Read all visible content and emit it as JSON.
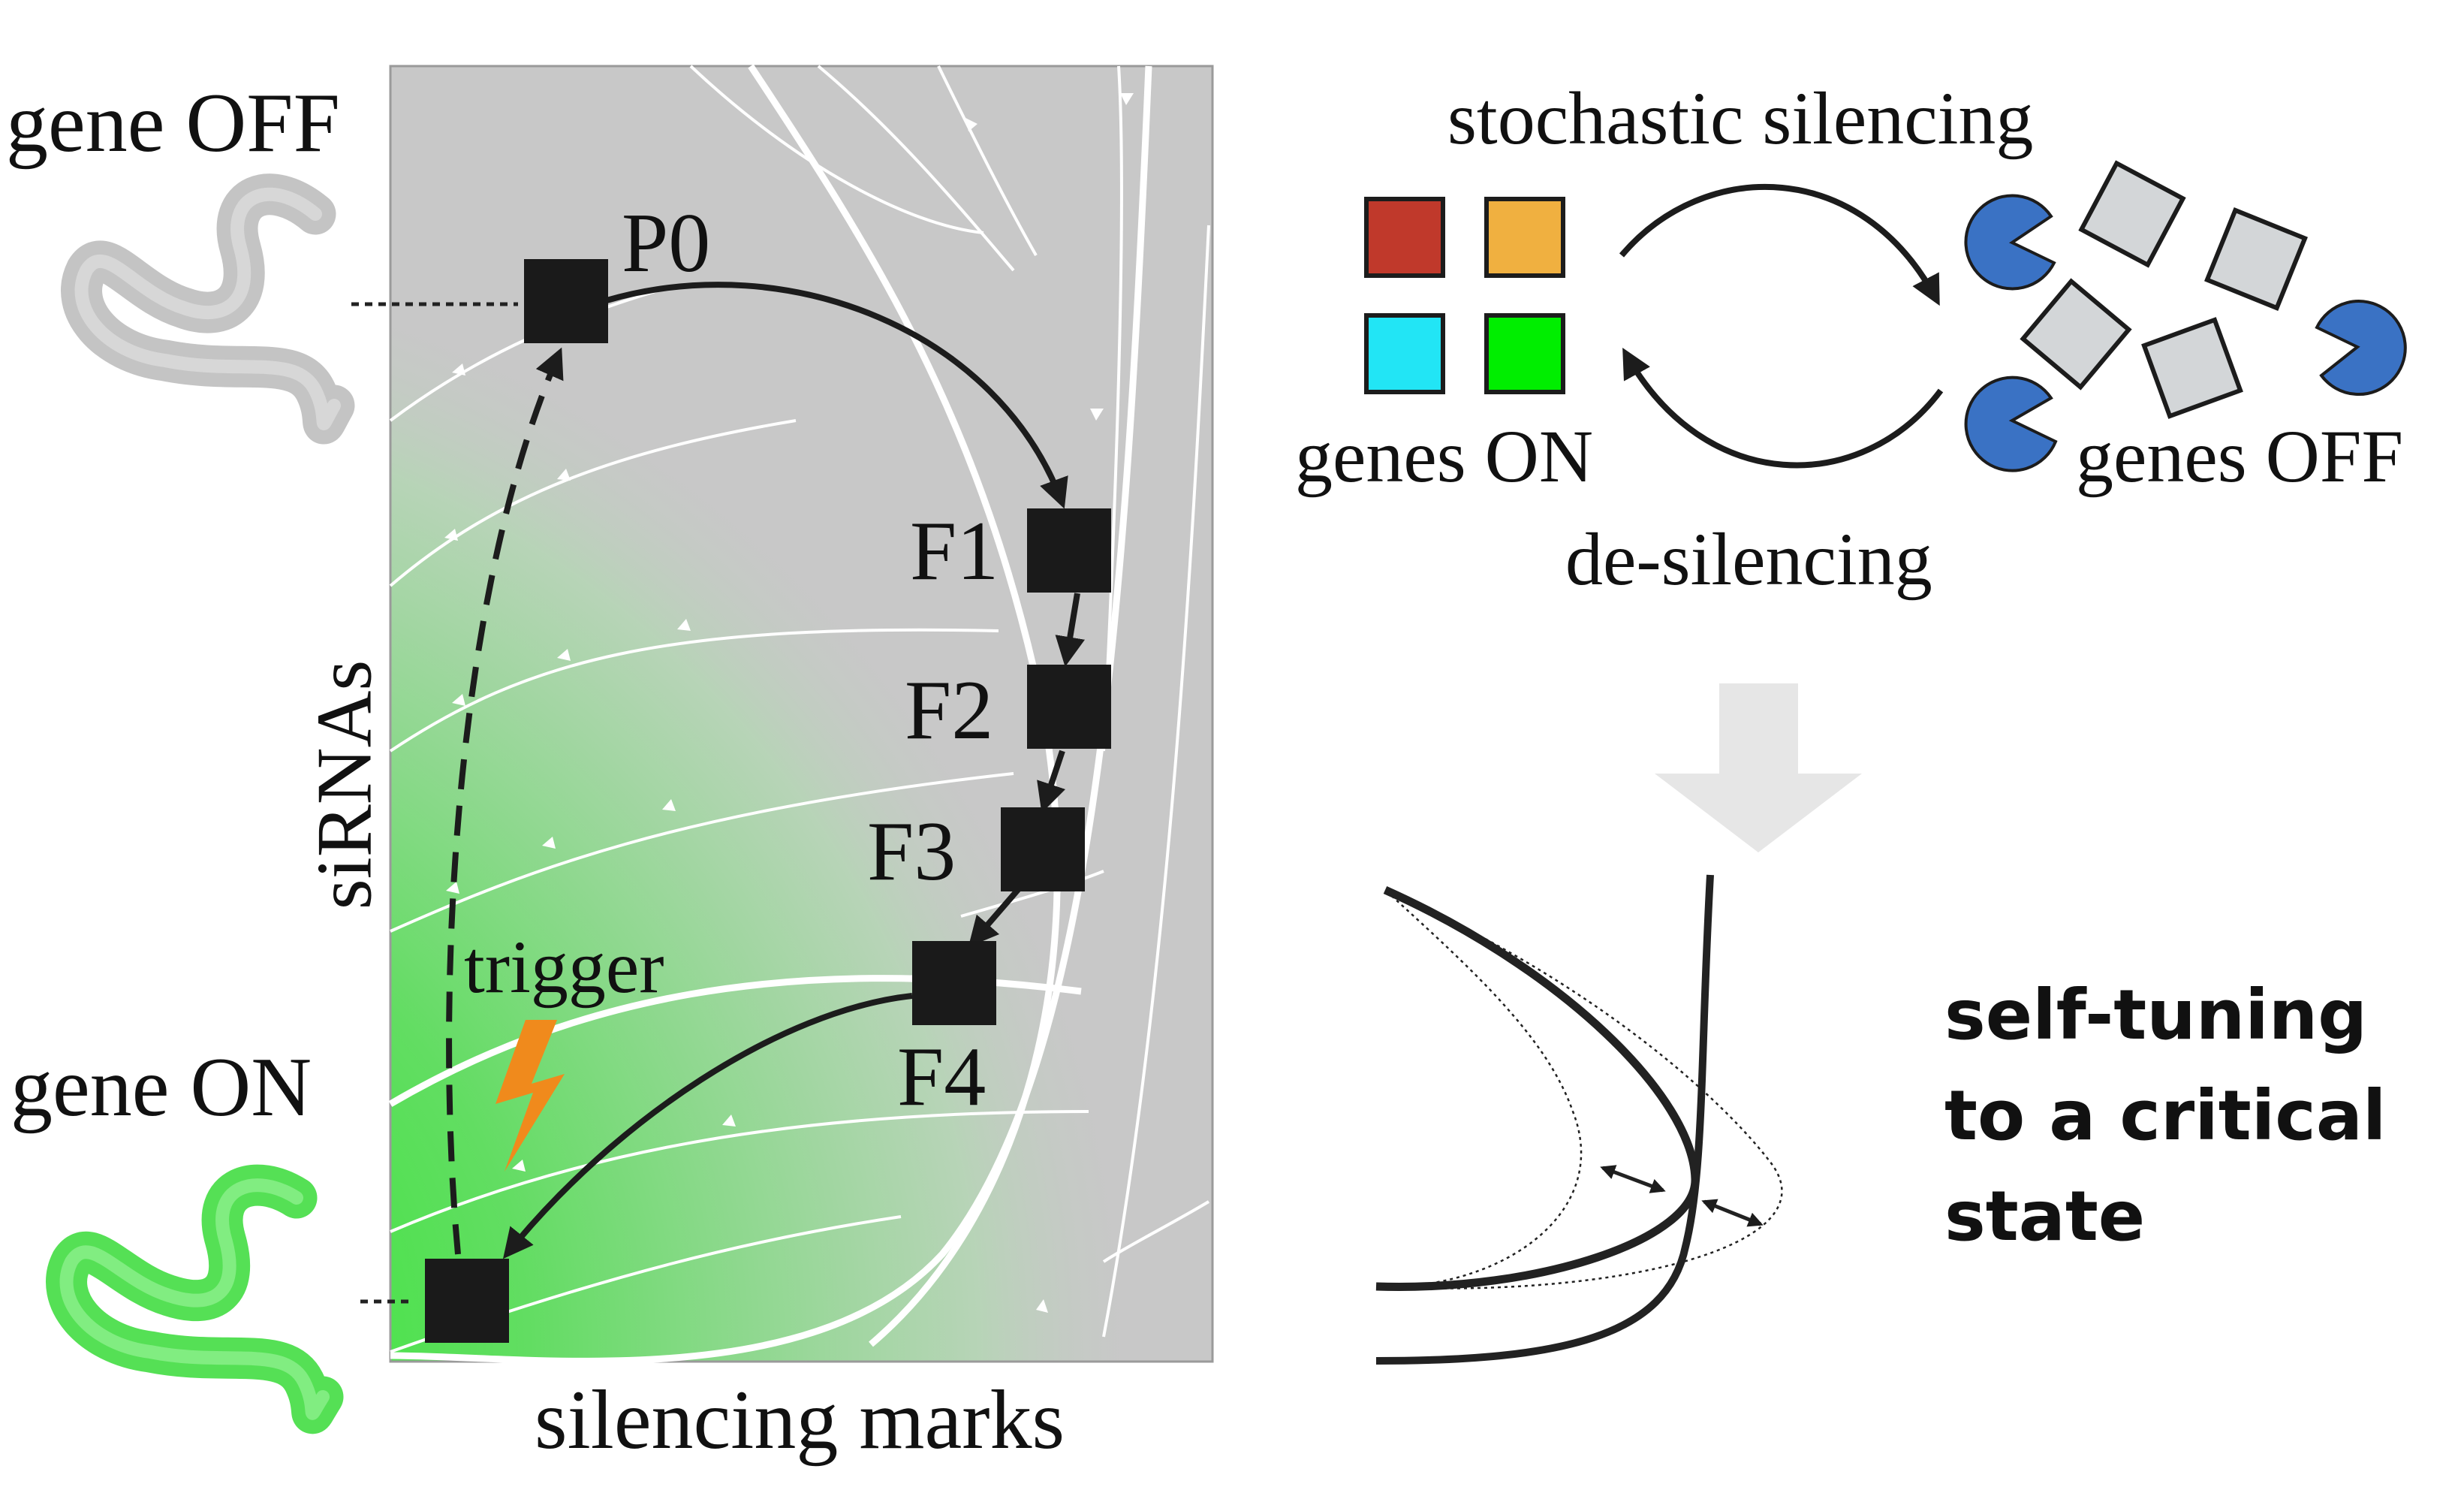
{
  "left_panel": {
    "x_axis_label": "silencing marks",
    "y_axis_label": "siRNAs",
    "gene_off_label": "gene OFF",
    "gene_on_label": "gene ON",
    "trigger_label": "trigger",
    "generations": [
      "P0",
      "F1",
      "F2",
      "F3",
      "F4"
    ]
  },
  "right_panel": {
    "top_arrow_label": "stochastic silencing",
    "bottom_arrow_label": "de-silencing",
    "genes_on_label": "genes ON",
    "genes_off_label": "genes OFF",
    "gene_colors": [
      "#c0392b",
      "#f0b040",
      "#22e5f5",
      "#00ee00"
    ],
    "caption_lines": [
      "self-tuning",
      "to a critical",
      "state"
    ]
  },
  "colors": {
    "field_gray": "#c8c8c8",
    "field_green": "#22ee22",
    "worm_gray": "#c4c4c4",
    "worm_green": "#55e055",
    "pacman_blue": "#3a72c4",
    "lightning_orange": "#f08a1c",
    "big_arrow_gray": "#e6e6e6"
  }
}
